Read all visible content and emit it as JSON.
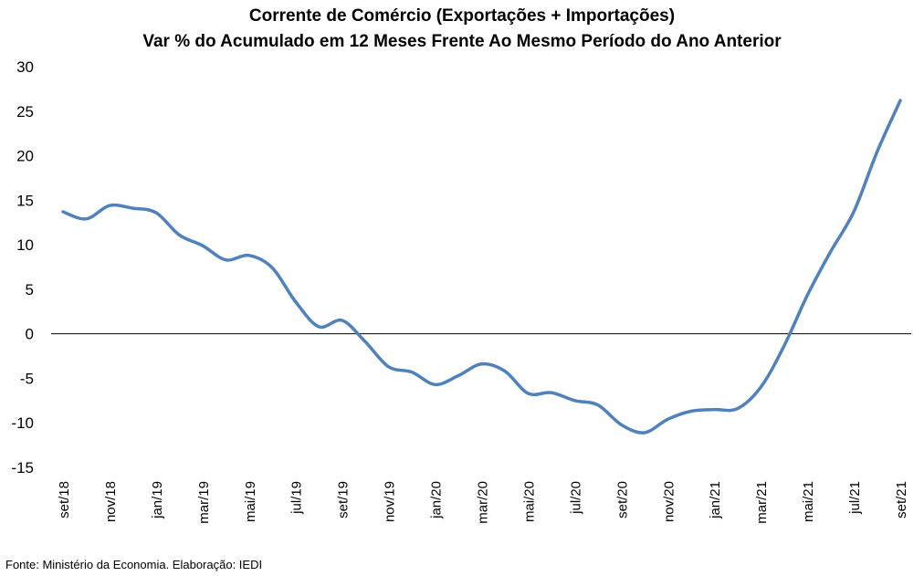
{
  "chart_data": {
    "type": "line",
    "title": "Corrente de Comércio (Exportações + Importações)",
    "subtitle": "Var % do Acumulado em 12 Meses Frente Ao Mesmo Período do Ano Anterior",
    "xlabel": "",
    "ylabel": "",
    "ylim": [
      -15,
      30
    ],
    "yticks": [
      "30",
      "25",
      "20",
      "15",
      "10",
      "5",
      "0",
      "-5",
      "-10",
      "-15"
    ],
    "tick_labels": [
      "set/18",
      "nov/18",
      "jan/19",
      "mar/19",
      "mai/19",
      "jul/19",
      "set/19",
      "nov/19",
      "jan/20",
      "mar/20",
      "mai/20",
      "jul/20",
      "set/20",
      "nov/20",
      "jan/21",
      "mar/21",
      "mai/21",
      "jul/21",
      "set/21"
    ],
    "grid": false,
    "legend": "none",
    "x": [
      "set/18",
      "out/18",
      "nov/18",
      "dez/18",
      "jan/19",
      "fev/19",
      "mar/19",
      "abr/19",
      "mai/19",
      "jun/19",
      "jul/19",
      "ago/19",
      "set/19",
      "out/19",
      "nov/19",
      "dez/19",
      "jan/20",
      "fev/20",
      "mar/20",
      "abr/20",
      "mai/20",
      "jun/20",
      "jul/20",
      "ago/20",
      "set/20",
      "out/20",
      "nov/20",
      "dez/20",
      "jan/21",
      "fev/21",
      "mar/21",
      "abr/21",
      "mai/21",
      "jun/21",
      "jul/21",
      "ago/21",
      "set/21"
    ],
    "series": [
      {
        "values": [
          13.7,
          12.9,
          14.4,
          14.1,
          13.6,
          11.1,
          9.9,
          8.3,
          8.8,
          7.4,
          3.6,
          0.8,
          1.5,
          -0.9,
          -3.7,
          -4.3,
          -5.7,
          -4.7,
          -3.4,
          -4.2,
          -6.7,
          -6.6,
          -7.5,
          -8.0,
          -10.2,
          -11.1,
          -9.6,
          -8.7,
          -8.5,
          -8.4,
          -6.0,
          -1.4,
          4.3,
          9.2,
          13.7,
          20.4,
          26.2
        ],
        "color": "#4f81bd"
      }
    ],
    "zero_line_color": "#000000"
  },
  "footer": {
    "source": "Fonte: Ministério da Economia. Elaboração: IEDI"
  }
}
